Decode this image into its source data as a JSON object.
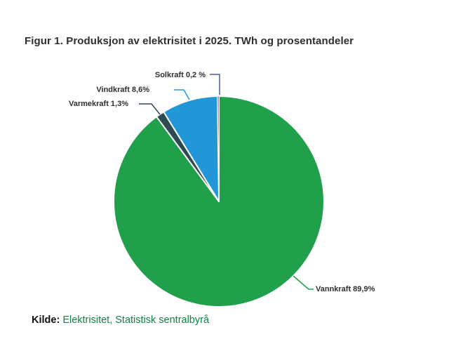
{
  "title": "Figur 1. Produksjon av elektrisitet i 2025. TWh og prosentandeler",
  "source": {
    "prefix": "Kilde:",
    "text": "Elektrisitet, Statistisk sentralbyrå"
  },
  "colors": {
    "vannkraft": "#21a04c",
    "varmekraft": "#2b4a52",
    "vindkraft": "#2297d8",
    "solkraft": "#4a5ab4",
    "source_link": "#108345",
    "title_text": "#2e2e2e"
  },
  "chart_data": {
    "type": "pie",
    "title": "Figur 1. Produksjon av elektrisitet i 2025. TWh og prosentandeler",
    "unit": "TWh og prosentandeler",
    "start_angle_deg": 0,
    "direction": "clockwise",
    "legend": "none",
    "labels": "outside-with-leader-lines",
    "slices": [
      {
        "label": "Vannkraft",
        "value_pct": 89.9,
        "display": "Vannkraft 89,9%",
        "color": "#21a04c"
      },
      {
        "label": "Varmekraft",
        "value_pct": 1.3,
        "display": "Varmekraft 1,3%",
        "color": "#2b4a52"
      },
      {
        "label": "Vindkraft",
        "value_pct": 8.6,
        "display": "Vindkraft 8,6%",
        "color": "#2297d8"
      },
      {
        "label": "Solkraft",
        "value_pct": 0.2,
        "display": "Solkraft 0,2 %",
        "color": "#4a5ab4"
      }
    ]
  }
}
